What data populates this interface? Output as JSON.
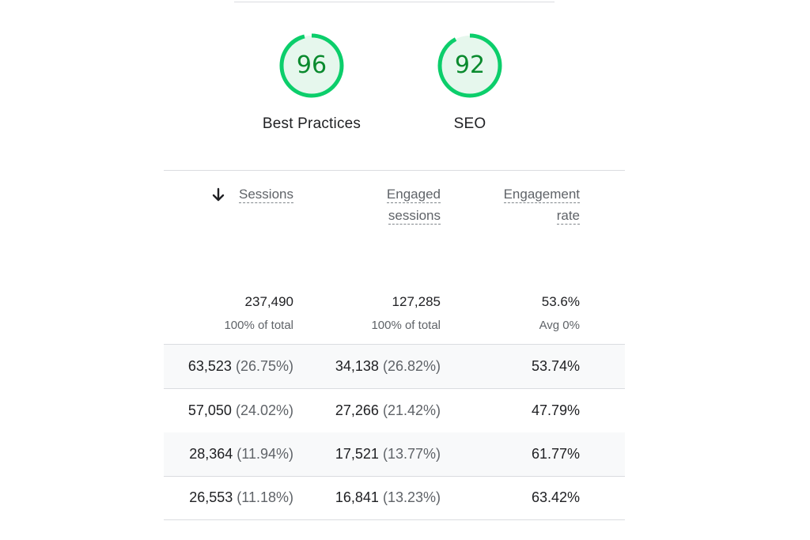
{
  "scores": [
    {
      "label": "Best Practices",
      "value": "96",
      "color": "#0cce6b"
    },
    {
      "label": "SEO",
      "value": "92",
      "color": "#0cce6b"
    }
  ],
  "table": {
    "columns": [
      {
        "line1": "Sessions",
        "line2": "",
        "sorted": true
      },
      {
        "line1": "Engaged",
        "line2": "sessions",
        "sorted": false
      },
      {
        "line1": "Engagement",
        "line2": "rate",
        "sorted": false
      }
    ],
    "totals": [
      {
        "value": "237,490",
        "sub": "100% of total"
      },
      {
        "value": "127,285",
        "sub": "100% of total"
      },
      {
        "value": "53.6%",
        "sub": "Avg 0%"
      }
    ],
    "rows": [
      {
        "sessions": "63,523",
        "sessions_pct": "(26.75%)",
        "engaged": "34,138",
        "engaged_pct": "(26.82%)",
        "rate": "53.74%"
      },
      {
        "sessions": "57,050",
        "sessions_pct": "(24.02%)",
        "engaged": "27,266",
        "engaged_pct": "(21.42%)",
        "rate": "47.79%"
      },
      {
        "sessions": "28,364",
        "sessions_pct": "(11.94%)",
        "engaged": "17,521",
        "engaged_pct": "(13.77%)",
        "rate": "61.77%"
      },
      {
        "sessions": "26,553",
        "sessions_pct": "(11.18%)",
        "engaged": "16,841",
        "engaged_pct": "(13.23%)",
        "rate": "63.42%"
      }
    ]
  }
}
